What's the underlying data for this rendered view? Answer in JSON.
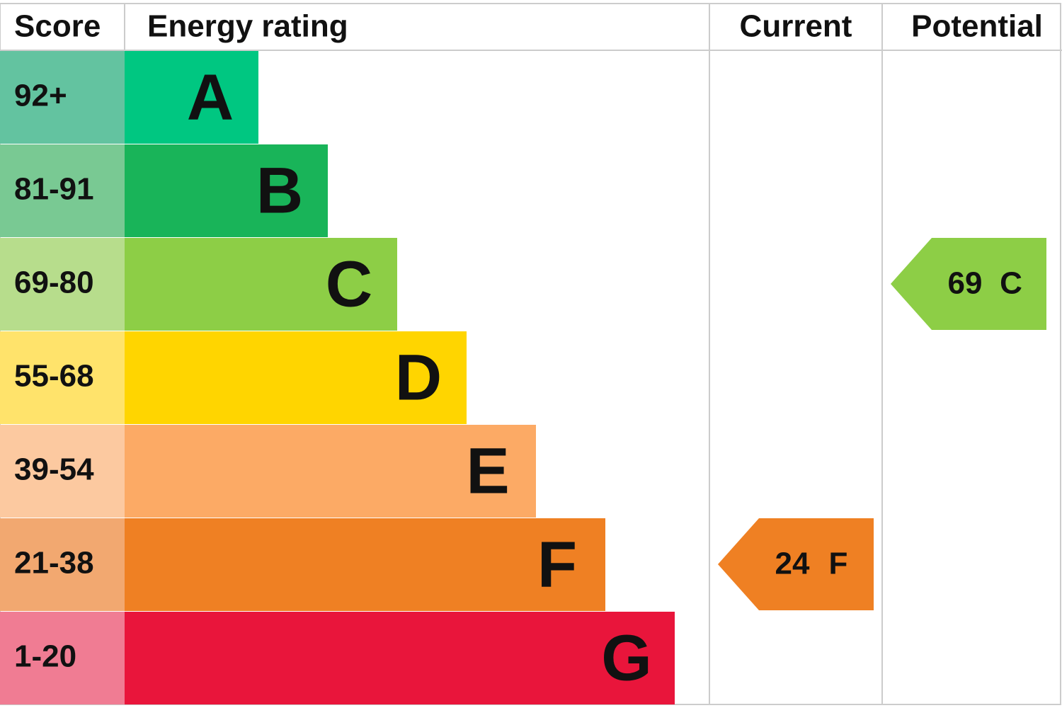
{
  "header": {
    "score": "Score",
    "energy_rating": "Energy rating",
    "current": "Current",
    "potential": "Potential"
  },
  "rows": [
    {
      "score": "92+",
      "letter": "A",
      "score_color": "#63c3a0",
      "bar_color": "#00c781"
    },
    {
      "score": "81-91",
      "letter": "B",
      "score_color": "#79c993",
      "bar_color": "#19b459"
    },
    {
      "score": "69-80",
      "letter": "C",
      "score_color": "#b7dd8c",
      "bar_color": "#8dce46"
    },
    {
      "score": "55-68",
      "letter": "D",
      "score_color": "#ffe36b",
      "bar_color": "#ffd500"
    },
    {
      "score": "39-54",
      "letter": "E",
      "score_color": "#fcc9a0",
      "bar_color": "#fcaa65"
    },
    {
      "score": "21-38",
      "letter": "F",
      "score_color": "#f2a870",
      "bar_color": "#ef8023"
    },
    {
      "score": "1-20",
      "letter": "G",
      "score_color": "#f07c93",
      "bar_color": "#e9153b"
    }
  ],
  "current": {
    "value": 24,
    "letter": "F",
    "color": "#ef8023"
  },
  "potential": {
    "value": 69,
    "letter": "C",
    "color": "#8dce46"
  }
}
